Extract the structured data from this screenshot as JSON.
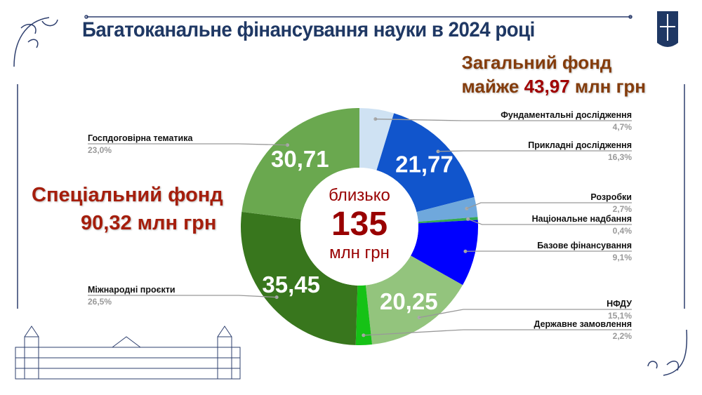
{
  "title": "Багатоканальне фінансування науки в 2024 році",
  "general_fund": {
    "line1": "Загальний фонд",
    "prefix": "майже",
    "amount": "43,97",
    "suffix": "млн  грн"
  },
  "special_fund": {
    "line1": "Спеціальний фонд",
    "line2": "90,32 млн грн"
  },
  "center": {
    "top": "близько",
    "total": "135",
    "unit": "млн грн"
  },
  "chart_data": {
    "type": "pie",
    "donut": true,
    "title": "Багатоканальне фінансування науки в 2024 році",
    "unit": "%",
    "slices": [
      {
        "name": "Фундаментальні дослідження",
        "percent": 4.7,
        "pct_label": "4,7%",
        "value_label": null,
        "color": "#cfe2f3",
        "side": "right"
      },
      {
        "name": "Прикладні дослідження",
        "percent": 16.3,
        "pct_label": "16,3%",
        "value_label": "21,77",
        "color": "#1155cc",
        "side": "right"
      },
      {
        "name": "Розробки",
        "percent": 2.7,
        "pct_label": "2,7%",
        "value_label": null,
        "color": "#6fa8dc",
        "side": "right"
      },
      {
        "name": "Національне надбання",
        "percent": 0.4,
        "pct_label": "0,4%",
        "value_label": null,
        "color": "#34a853",
        "side": "right"
      },
      {
        "name": "Базове фінансування",
        "percent": 9.1,
        "pct_label": "9,1%",
        "value_label": null,
        "color": "#0000ff",
        "side": "right"
      },
      {
        "name": "НФДУ",
        "percent": 15.1,
        "pct_label": "15,1%",
        "value_label": "20,25",
        "color": "#93c47d",
        "side": "right"
      },
      {
        "name": "Державне замовлення",
        "percent": 2.2,
        "pct_label": "2,2%",
        "value_label": null,
        "color": "#16c216",
        "side": "right"
      },
      {
        "name": "Міжнародні проєкти",
        "percent": 26.5,
        "pct_label": "26,5%",
        "value_label": "35,45",
        "color": "#38761d",
        "side": "left"
      },
      {
        "name": "Госпдоговірна тематика",
        "percent": 23.0,
        "pct_label": "23,0%",
        "value_label": "30,71",
        "color": "#6aa84f",
        "side": "left"
      }
    ],
    "legend": "leader-line labels"
  }
}
